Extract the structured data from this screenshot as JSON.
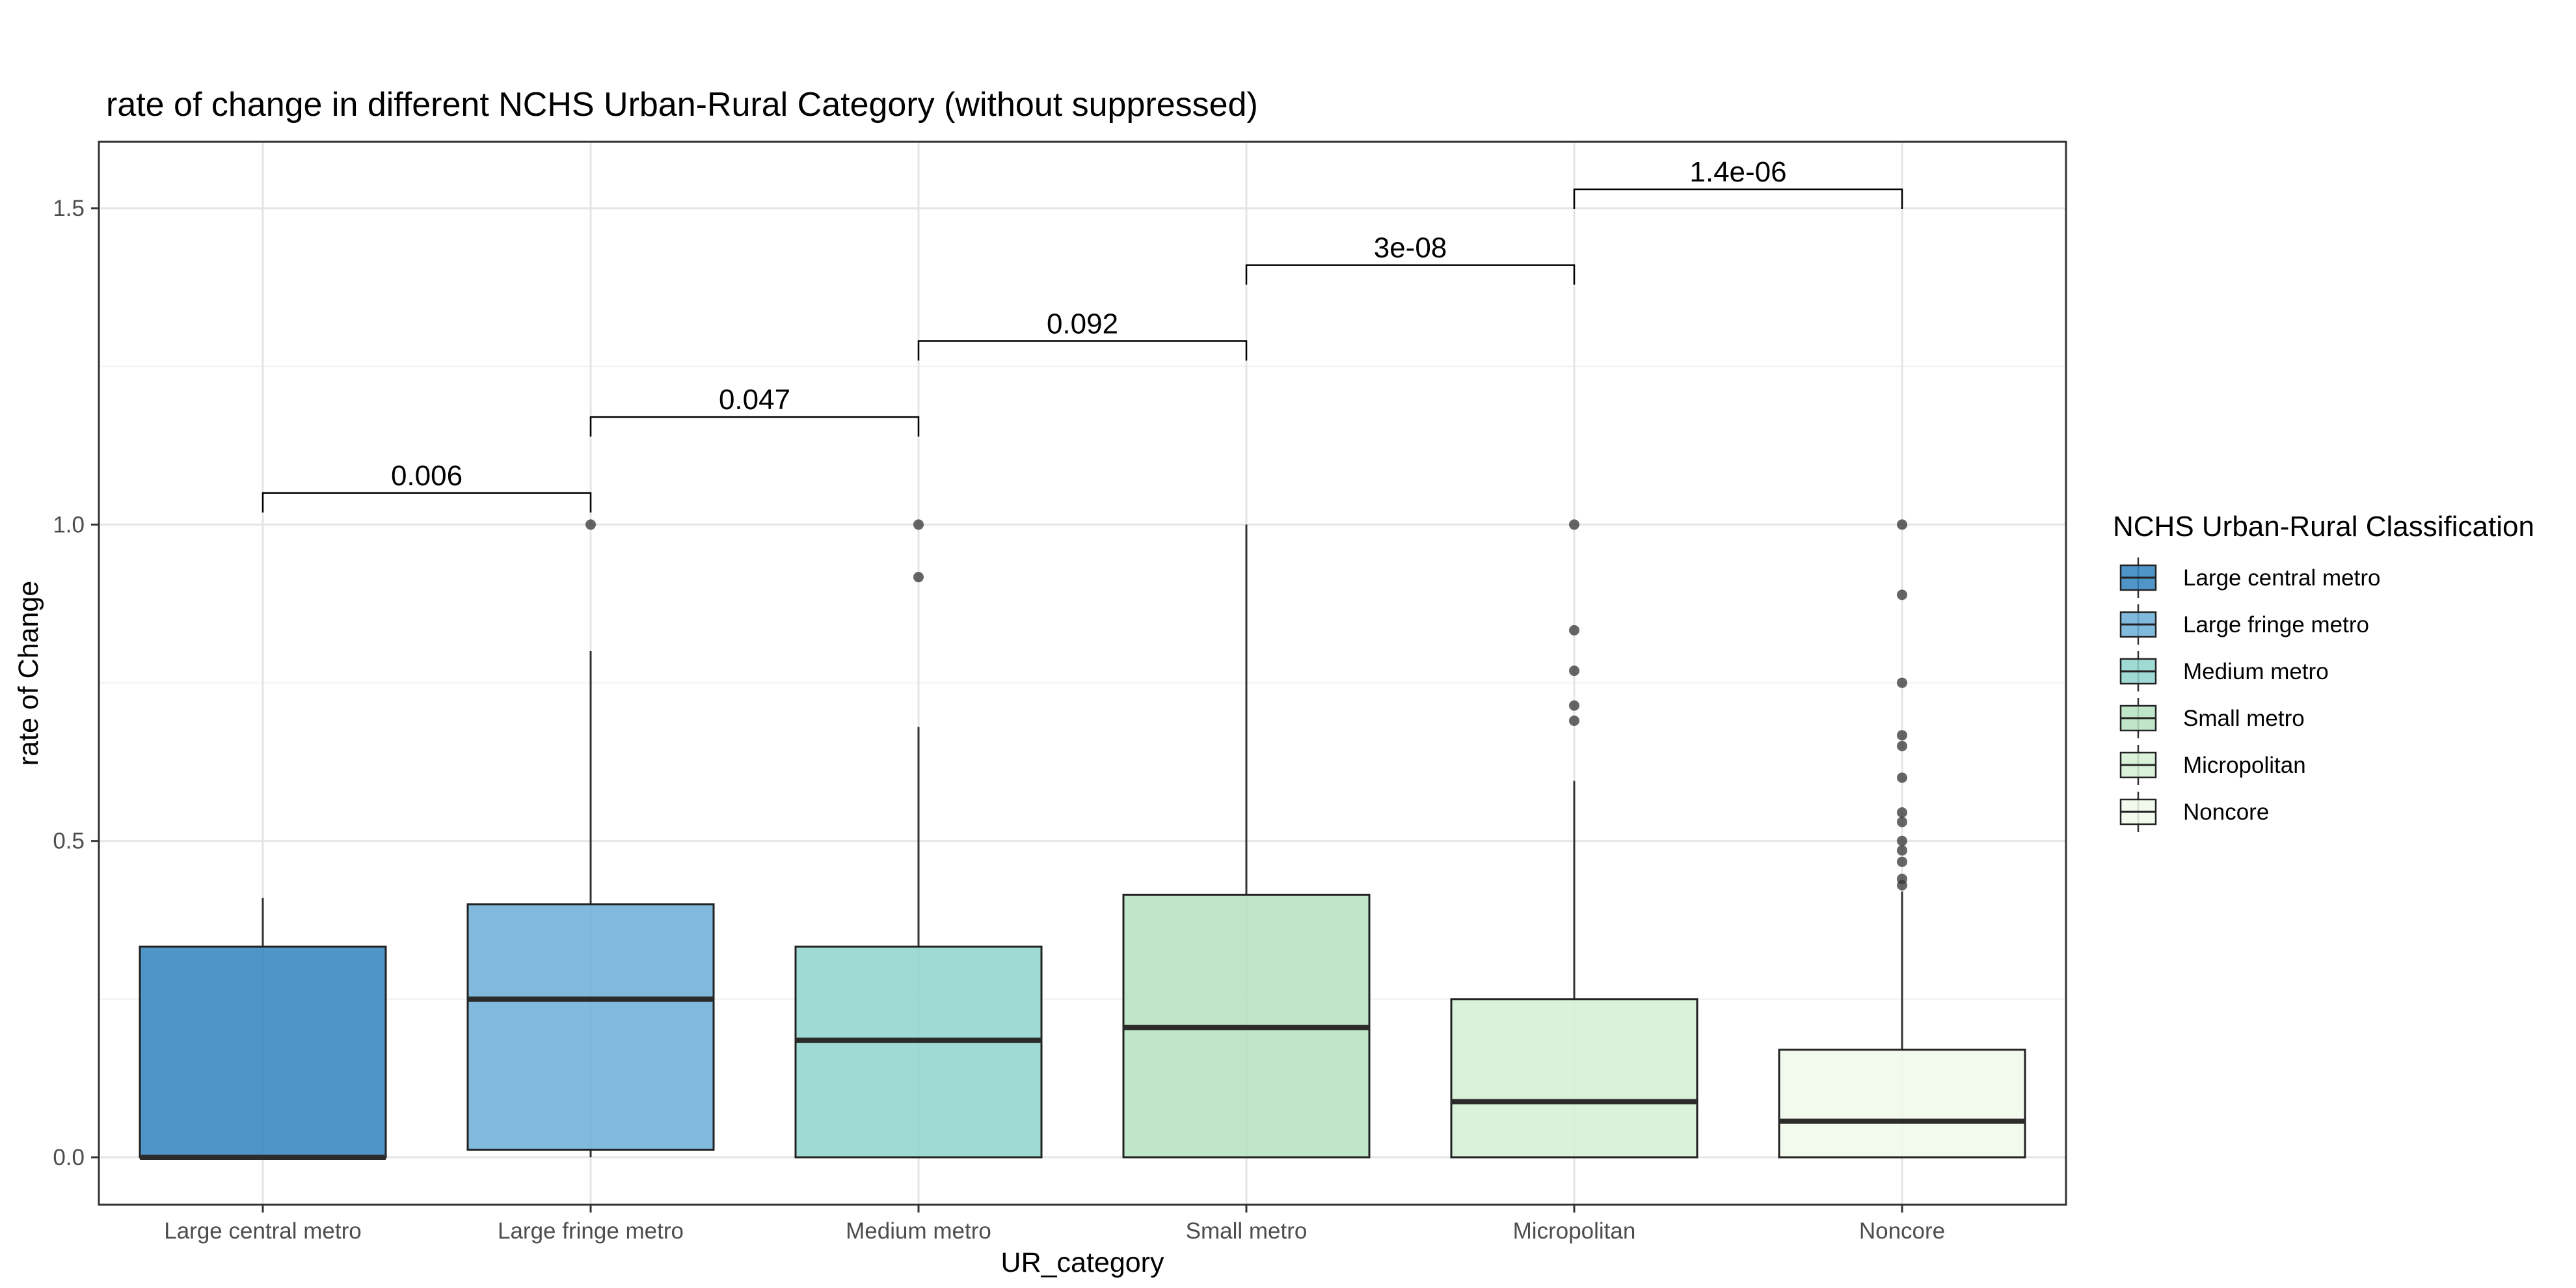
{
  "chart_data": {
    "type": "box",
    "title": "rate of change in different NCHS Urban-Rural Category (without suppressed)",
    "xlabel": "UR_category",
    "ylabel": "rate of Change",
    "ylim": [
      -0.075,
      1.605
    ],
    "yticks": [
      0.0,
      0.5,
      1.0,
      1.5
    ],
    "ytick_labels": [
      "0.0",
      "0.5",
      "1.0",
      "1.5"
    ],
    "grid": true,
    "legend": {
      "title": "NCHS Urban-Rural Classification",
      "position": "right"
    },
    "categories": [
      "Large central metro",
      "Large fringe metro",
      "Medium metro",
      "Small metro",
      "Micropolitan",
      "Noncore"
    ],
    "series": [
      {
        "name": "Large central metro",
        "color": "#3182bd",
        "q1": 0.0,
        "median": 0.0,
        "q3": 0.333,
        "whisker_low": 0.0,
        "whisker_high": 0.41,
        "outliers": []
      },
      {
        "name": "Large fringe metro",
        "color": "#6baed6",
        "q1": 0.012,
        "median": 0.25,
        "q3": 0.4,
        "whisker_low": 0.0,
        "whisker_high": 0.8,
        "outliers": [
          1.0
        ]
      },
      {
        "name": "Medium metro",
        "color": "#8fd3cd",
        "q1": 0.0,
        "median": 0.185,
        "q3": 0.333,
        "whisker_low": 0.0,
        "whisker_high": 0.68,
        "outliers": [
          1.0,
          0.917
        ]
      },
      {
        "name": "Small metro",
        "color": "#b5e2c0",
        "q1": 0.0,
        "median": 0.205,
        "q3": 0.415,
        "whisker_low": 0.0,
        "whisker_high": 1.0,
        "outliers": []
      },
      {
        "name": "Micropolitan",
        "color": "#d4efd4",
        "q1": 0.0,
        "median": 0.088,
        "q3": 0.25,
        "whisker_low": 0.0,
        "whisker_high": 0.595,
        "outliers": [
          1.0,
          0.833,
          0.769,
          0.714,
          0.69
        ]
      },
      {
        "name": "Noncore",
        "color": "#f0f8ea",
        "q1": 0.0,
        "median": 0.057,
        "q3": 0.17,
        "whisker_low": 0.0,
        "whisker_high": 0.42,
        "outliers": [
          1.0,
          0.889,
          0.75,
          0.667,
          0.65,
          0.6,
          0.545,
          0.53,
          0.5,
          0.485,
          0.467,
          0.44,
          0.43
        ]
      }
    ],
    "annotations": [
      {
        "from": 0,
        "to": 1,
        "label": "0.006",
        "y": 1.05
      },
      {
        "from": 1,
        "to": 2,
        "label": "0.047",
        "y": 1.17
      },
      {
        "from": 2,
        "to": 3,
        "label": "0.092",
        "y": 1.29
      },
      {
        "from": 3,
        "to": 4,
        "label": "3e-08",
        "y": 1.41
      },
      {
        "from": 4,
        "to": 5,
        "label": "1.4e-06",
        "y": 1.53
      }
    ]
  }
}
